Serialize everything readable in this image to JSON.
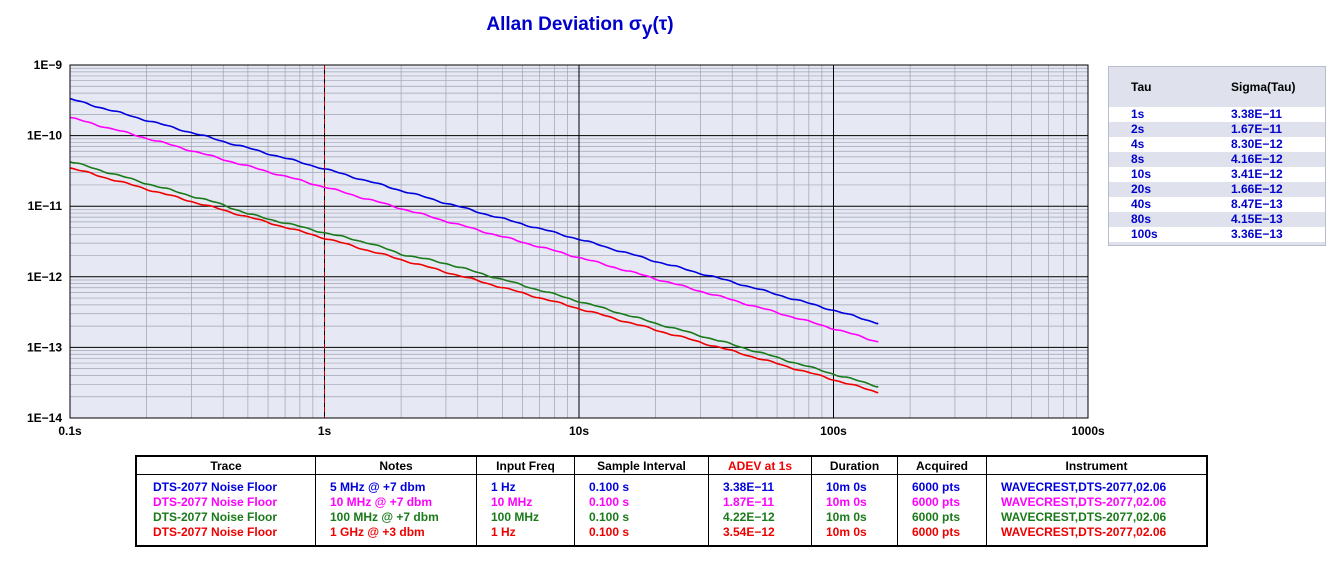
{
  "title": {
    "main": "Allan Deviation σ",
    "sub": "y",
    "tail": "(τ)"
  },
  "colors": {
    "blue": "#0000dd",
    "magenta": "#ff00ff",
    "green": "#1a7a1a",
    "red": "#ee0000",
    "plot_bg": "#e6e9f3",
    "grid_major": "#000000",
    "grid_minor": "#a0a4b4",
    "marker": "#cc0000",
    "text_blue": "#0000cc"
  },
  "tau_table": {
    "header": {
      "tau": "Tau",
      "sigma": "Sigma(Tau)"
    },
    "rows": [
      {
        "tau": "1s",
        "sigma": "3.38E−11"
      },
      {
        "tau": "2s",
        "sigma": "1.67E−11"
      },
      {
        "tau": "4s",
        "sigma": "8.30E−12"
      },
      {
        "tau": "8s",
        "sigma": "4.16E−12"
      },
      {
        "tau": "10s",
        "sigma": "3.41E−12"
      },
      {
        "tau": "20s",
        "sigma": "1.66E−12"
      },
      {
        "tau": "40s",
        "sigma": "8.47E−13"
      },
      {
        "tau": "80s",
        "sigma": "4.15E−13"
      },
      {
        "tau": "100s",
        "sigma": "3.36E−13"
      }
    ]
  },
  "legend": {
    "headers": [
      "Trace",
      "Notes",
      "Input Freq",
      "Sample Interval",
      "ADEV at 1s",
      "Duration",
      "Acquired",
      "Instrument"
    ],
    "rows": [
      {
        "color": "#0000dd",
        "cells": [
          "DTS-2077 Noise Floor",
          "5 MHz @ +7 dbm",
          "1 Hz",
          "0.100 s",
          "3.38E−11",
          "10m 0s",
          "6000 pts",
          "WAVECREST,DTS-2077,02.06"
        ]
      },
      {
        "color": "#ff00ff",
        "cells": [
          "DTS-2077 Noise Floor",
          "10 MHz @ +7 dbm",
          "10 MHz",
          "0.100 s",
          "1.87E−11",
          "10m 0s",
          "6000 pts",
          "WAVECREST,DTS-2077,02.06"
        ]
      },
      {
        "color": "#1a7a1a",
        "cells": [
          "DTS-2077 Noise Floor",
          "100 MHz @ +7 dbm",
          "100 MHz",
          "0.100 s",
          "4.22E−12",
          "10m 0s",
          "6000 pts",
          "WAVECREST,DTS-2077,02.06"
        ]
      },
      {
        "color": "#ee0000",
        "cells": [
          "DTS-2077 Noise Floor",
          "1 GHz @ +3 dbm",
          "1 Hz",
          "0.100 s",
          "3.54E−12",
          "10m 0s",
          "6000 pts",
          "WAVECREST,DTS-2077,02.06"
        ]
      }
    ]
  },
  "chart_data": {
    "type": "line",
    "title": "Allan Deviation σy(τ)",
    "xscale": "log",
    "yscale": "log",
    "xlim": [
      0.1,
      1000
    ],
    "ylim": [
      1e-14,
      1e-09
    ],
    "x_ticks": [
      "0.1s",
      "1s",
      "10s",
      "100s",
      "1000s"
    ],
    "y_ticks": [
      "1E−14",
      "1E−13",
      "1E−12",
      "1E−11",
      "1E−10",
      "1E−9"
    ],
    "grid": true,
    "marker_x": 1,
    "series": [
      {
        "color": "#0000dd",
        "x": [
          0.1,
          0.2,
          0.4,
          1,
          2,
          4,
          10,
          20,
          40,
          100,
          150
        ],
        "y": [
          3.3e-10,
          1.65e-10,
          8.3e-11,
          3.38e-11,
          1.67e-11,
          8.3e-12,
          3.41e-12,
          1.66e-12,
          8.47e-13,
          3.36e-13,
          2.2e-13
        ]
      },
      {
        "color": "#ff00ff",
        "x": [
          0.1,
          0.2,
          0.4,
          1,
          2,
          4,
          10,
          20,
          40,
          100,
          150
        ],
        "y": [
          1.8e-10,
          9.2e-11,
          4.6e-11,
          1.87e-11,
          9.3e-12,
          4.6e-12,
          1.88e-12,
          9.4e-13,
          4.7e-13,
          1.85e-13,
          1.2e-13
        ]
      },
      {
        "color": "#1a7a1a",
        "x": [
          0.1,
          0.2,
          0.4,
          0.5,
          1,
          1.5,
          2,
          3,
          4,
          10,
          20,
          40,
          100,
          150
        ],
        "y": [
          4.3e-11,
          2.1e-11,
          1.05e-11,
          7.8e-12,
          4.22e-12,
          3e-12,
          2.1e-12,
          1.55e-12,
          1.15e-12,
          4.5e-13,
          2.2e-13,
          1.1e-13,
          4.2e-14,
          2.8e-14
        ]
      },
      {
        "color": "#ee0000",
        "x": [
          0.1,
          0.2,
          0.4,
          1,
          2,
          4,
          10,
          20,
          40,
          100,
          150
        ],
        "y": [
          3.5e-11,
          1.75e-11,
          8.8e-12,
          3.54e-12,
          1.75e-12,
          8.8e-13,
          3.55e-13,
          1.77e-13,
          8.9e-14,
          3.5e-14,
          2.3e-14
        ]
      }
    ]
  }
}
